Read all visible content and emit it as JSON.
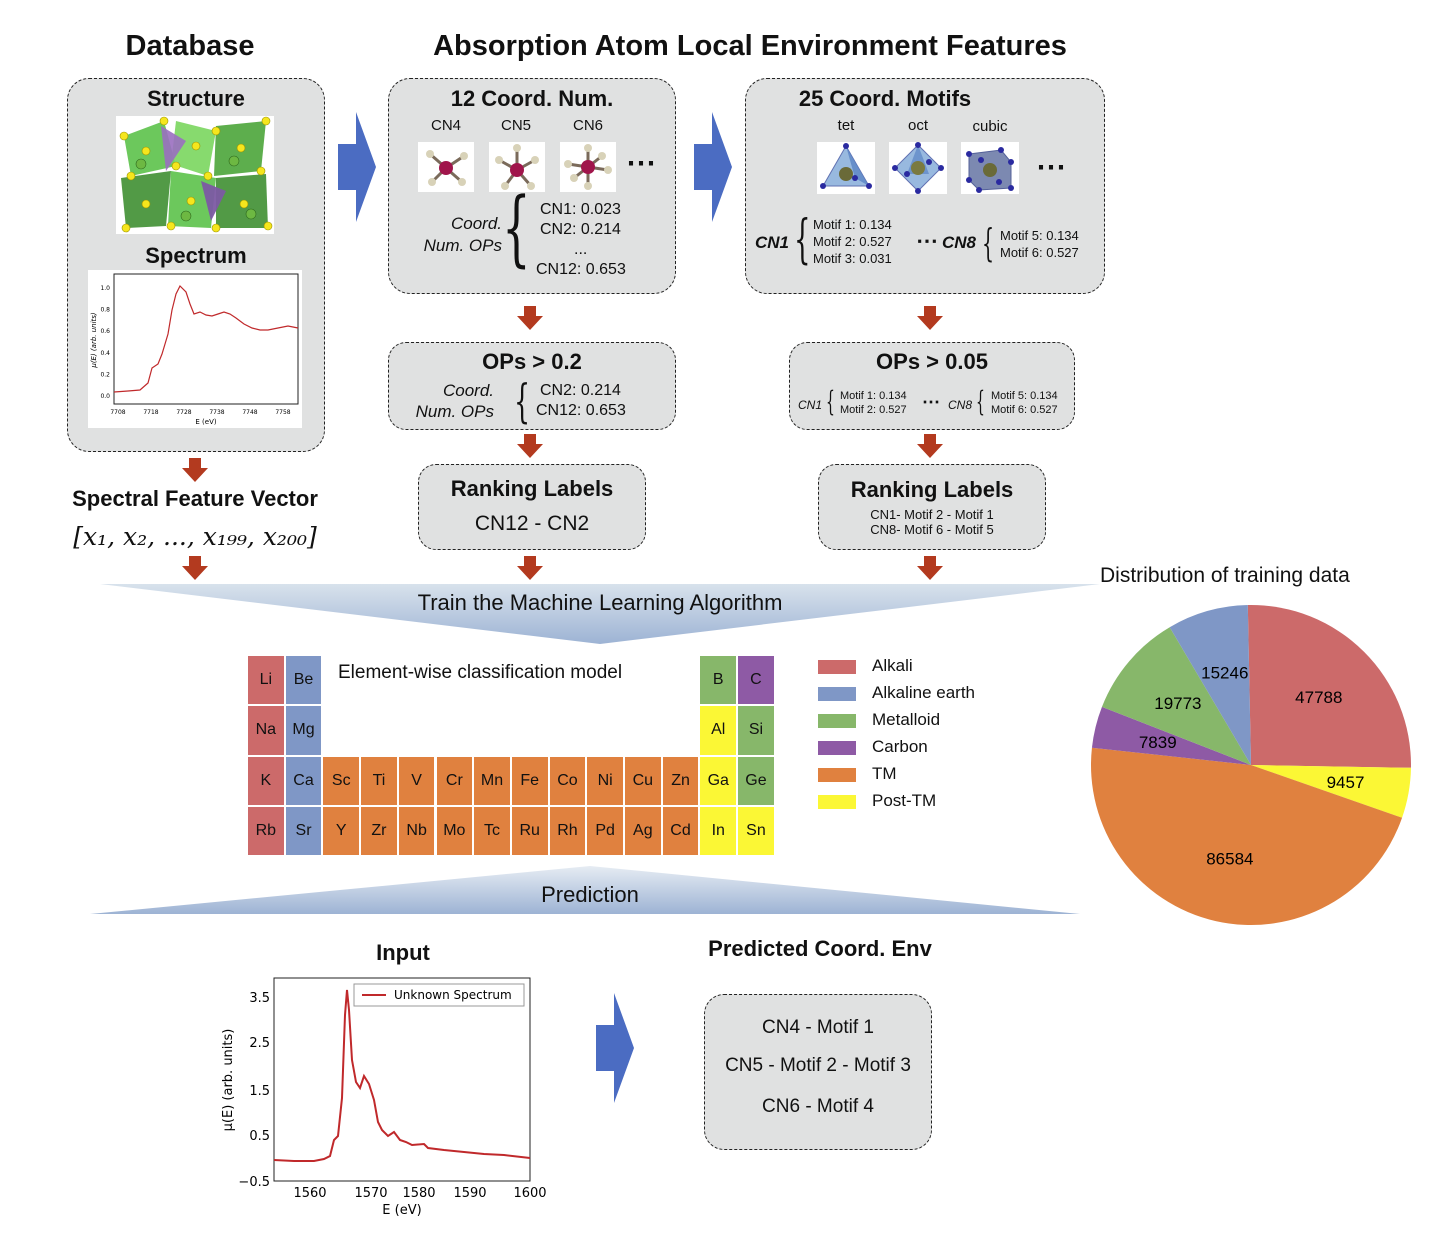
{
  "headers": {
    "database": "Database",
    "features": "Absorption Atom Local Environment Features"
  },
  "database_box": {
    "structure": "Structure",
    "spectrum": "Spectrum"
  },
  "db_spectrum": {
    "ylabel": "μ(E) (arb. units)",
    "xlabel": "E (eV)",
    "yticks": [
      "0.0",
      "0.2",
      "0.4",
      "0.6",
      "0.8",
      "1.0"
    ],
    "xticks": [
      "7708",
      "7718",
      "7728",
      "7738",
      "7748",
      "7758"
    ]
  },
  "spectral": {
    "title": "Spectral Feature Vector",
    "vector": "[x₁, x₂, ..., x₁₉₉, x₂₀₀]"
  },
  "cn_box": {
    "title": "12 Coord. Num.",
    "labels": [
      "CN4",
      "CN5",
      "CN6"
    ],
    "ellipsis": "⋯",
    "ops_label_1": "Coord.",
    "ops_label_2": "Num. OPs",
    "values": [
      "CN1: 0.023",
      "CN2: 0.214",
      "...",
      "CN12: 0.653"
    ]
  },
  "motif_box": {
    "title": "25 Coord. Motifs",
    "labels": [
      "tet",
      "oct",
      "cubic"
    ],
    "ellipsis": "⋯",
    "cn1": "CN1",
    "cn8": "CN8",
    "cn1_values": [
      "Motif 1: 0.134",
      "Motif 2: 0.527",
      "Motif 3: 0.031"
    ],
    "cn8_values": [
      "Motif 5: 0.134",
      "Motif 6: 0.527"
    ],
    "dots": "⋯"
  },
  "ops_cn": {
    "title": "OPs > 0.2",
    "label_1": "Coord.",
    "label_2": "Num. OPs",
    "values": [
      "CN2: 0.214",
      "CN12: 0.653"
    ]
  },
  "ops_motif": {
    "title": "OPs > 0.05",
    "cn1": "CN1",
    "cn8": "CN8",
    "cn1_values": [
      "Motif 1: 0.134",
      "Motif 2: 0.527"
    ],
    "cn8_values": [
      "Motif 5: 0.134",
      "Motif 6: 0.527"
    ],
    "dots": "⋯"
  },
  "rank_cn": {
    "title": "Ranking Labels",
    "value": "CN12 - CN2"
  },
  "rank_motif": {
    "title": "Ranking Labels",
    "line1": "CN1- Motif 2 - Motif 1",
    "line2": "CN8- Motif 6 - Motif 5"
  },
  "train_label": "Train the Machine Learning Algorithm",
  "model_title": "Element-wise classification model",
  "colors": {
    "Alkali": "#cc6a6a",
    "Alkaline earth": "#7f97c6",
    "Metalloid": "#87b76a",
    "Carbon": "#8e5aa5",
    "TM": "#e0813f",
    "Post-TM": "#fbf735"
  },
  "periodic_table": {
    "left": [
      {
        "sym": "Li",
        "cat": "Alkali"
      },
      {
        "sym": "Be",
        "cat": "Alkaline earth"
      },
      {
        "sym": "Na",
        "cat": "Alkali"
      },
      {
        "sym": "Mg",
        "cat": "Alkaline earth"
      },
      {
        "sym": "K",
        "cat": "Alkali"
      },
      {
        "sym": "Ca",
        "cat": "Alkaline earth"
      },
      {
        "sym": "Rb",
        "cat": "Alkali"
      },
      {
        "sym": "Sr",
        "cat": "Alkaline earth"
      }
    ],
    "tm_row4": [
      "Sc",
      "Ti",
      "V",
      "Cr",
      "Mn",
      "Fe",
      "Co",
      "Ni",
      "Cu",
      "Zn"
    ],
    "tm_row5": [
      "Y",
      "Zr",
      "Nb",
      "Mo",
      "Tc",
      "Ru",
      "Rh",
      "Pd",
      "Ag",
      "Cd"
    ],
    "right": [
      {
        "sym": "B",
        "cat": "Metalloid"
      },
      {
        "sym": "C",
        "cat": "Carbon"
      },
      {
        "sym": "Al",
        "cat": "Post-TM"
      },
      {
        "sym": "Si",
        "cat": "Metalloid"
      },
      {
        "sym": "Ga",
        "cat": "Post-TM"
      },
      {
        "sym": "Ge",
        "cat": "Metalloid"
      },
      {
        "sym": "In",
        "cat": "Post-TM"
      },
      {
        "sym": "Sn",
        "cat": "Post-TM"
      }
    ]
  },
  "legend": [
    "Alkali",
    "Alkaline earth",
    "Metalloid",
    "Carbon",
    "TM",
    "Post-TM"
  ],
  "prediction_label": "Prediction",
  "input": {
    "title": "Input",
    "legend": "Unknown Spectrum",
    "ylabel": "μ(E) (arb. units)",
    "xlabel": "E (eV)",
    "yticks": [
      "3.5",
      "2.5",
      "1.5",
      "0.5",
      "−0.5"
    ],
    "xticks": [
      "1560",
      "1570",
      "1580",
      "1590",
      "1600"
    ]
  },
  "predicted": {
    "title": "Predicted Coord. Env",
    "lines": [
      "CN4 - Motif 1",
      "CN5 - Motif 2 - Motif 3",
      "CN6 - Motif 4"
    ]
  },
  "chart_data": {
    "type": "pie",
    "title": "Distribution of training data",
    "slices": [
      {
        "label": "Alkali",
        "value": 47788,
        "color": "#cc6a6a"
      },
      {
        "label": "Post-TM",
        "value": 9457,
        "color": "#fbf735"
      },
      {
        "label": "TM",
        "value": 86584,
        "color": "#e0813f"
      },
      {
        "label": "Carbon",
        "value": 7839,
        "color": "#8e5aa5"
      },
      {
        "label": "Metalloid",
        "value": 19773,
        "color": "#87b76a"
      },
      {
        "label": "Alkaline earth",
        "value": 15246,
        "color": "#7f97c6"
      }
    ]
  }
}
